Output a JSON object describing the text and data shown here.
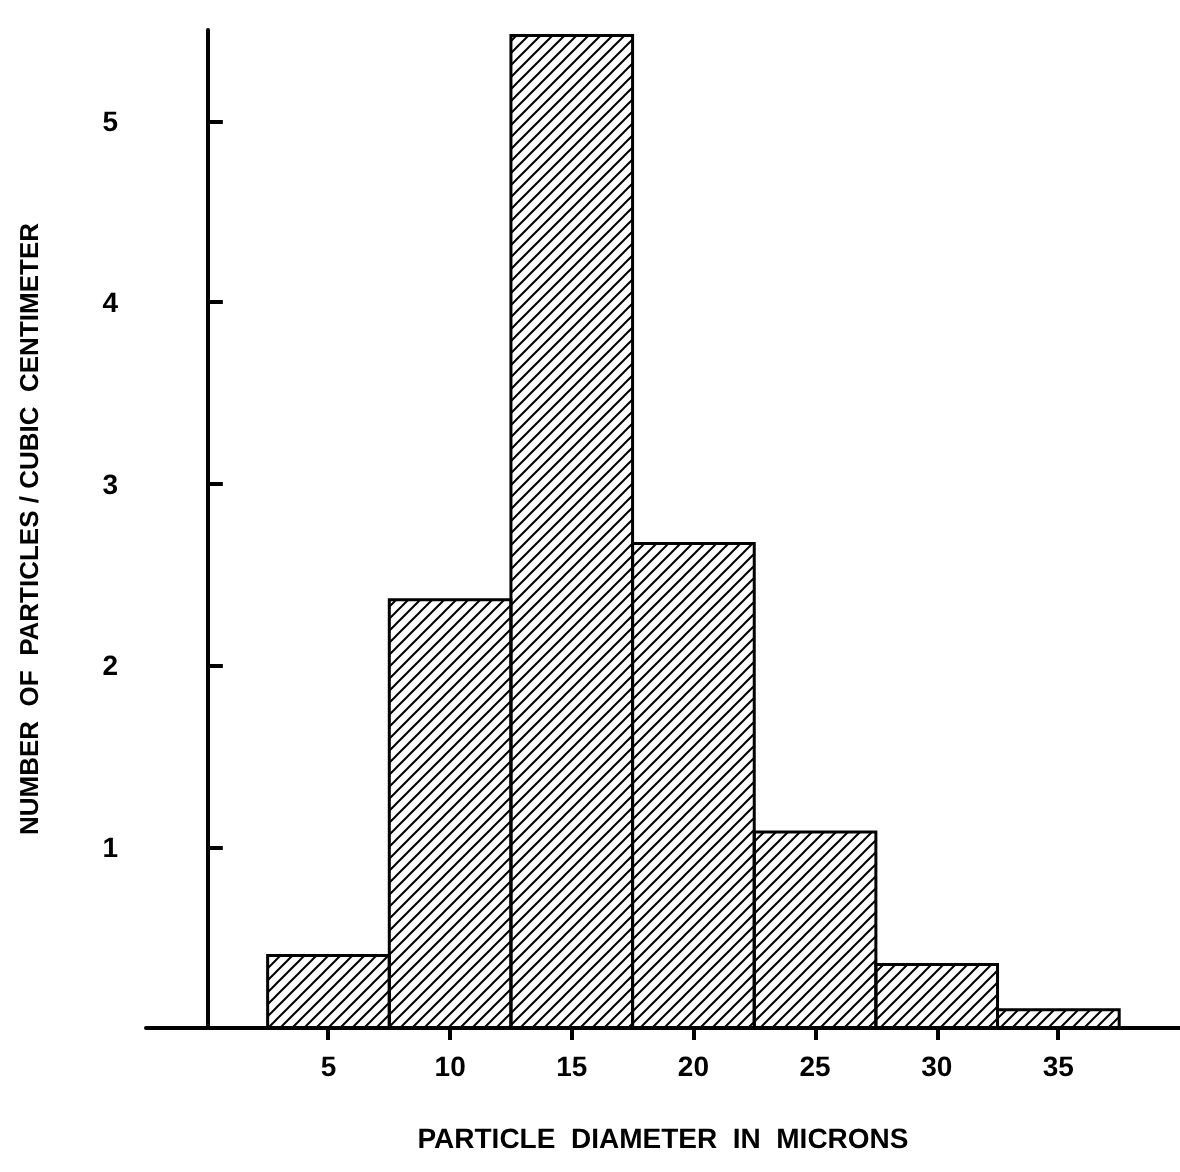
{
  "chart_data": {
    "type": "histogram",
    "xlabel": "PARTICLE  DIAMETER  IN  MICRONS",
    "ylabel": "NUMBER  OF  PARTICLES / CUBIC  CENTIMETER",
    "bins": [
      2.5,
      7.5,
      12.5,
      17.5,
      22.5,
      27.5,
      32.5,
      37.5
    ],
    "values": [
      0.4,
      2.36,
      5.47,
      2.67,
      1.08,
      0.35,
      0.1
    ],
    "color": "#000000",
    "xlim": [
      -2.5,
      40
    ],
    "xticks": [
      5,
      10,
      15,
      20,
      25,
      30,
      35
    ],
    "ylim": [
      0,
      5.5
    ],
    "yticks": [
      1,
      2,
      3,
      4,
      5
    ],
    "grid": false
  }
}
